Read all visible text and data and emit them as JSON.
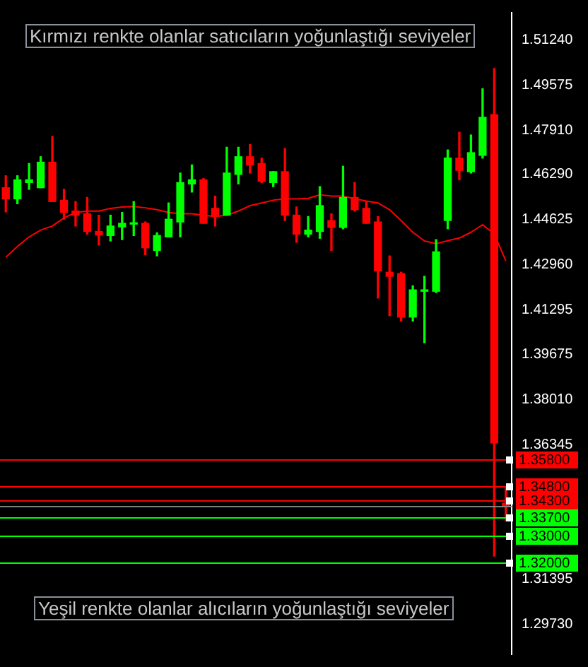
{
  "chart_data": {
    "type": "candlestick",
    "annotations": [
      "Kırmızı renkte olanlar satıcıların yoğunlaştığı seviyeler",
      "Yeşil renkte olanlar alıcıların yoğunlaştığı seviyeler"
    ],
    "categories": [
      null,
      null,
      null,
      null,
      null,
      null,
      null,
      null,
      null,
      null,
      null,
      null,
      null,
      null,
      null,
      null,
      null,
      null,
      null,
      null,
      null,
      null,
      null,
      null,
      null,
      null,
      null,
      null,
      null,
      null,
      null,
      null,
      null,
      null,
      null,
      null,
      null,
      null,
      null,
      null,
      null,
      null,
      null,
      null
    ],
    "ohlc": [
      [
        1.458,
        1.4624,
        1.4491,
        1.4539
      ],
      [
        1.4539,
        1.4624,
        1.4521,
        1.4609
      ],
      [
        1.4599,
        1.4669,
        1.4574,
        1.4609
      ],
      [
        1.458,
        1.4694,
        1.458,
        1.4674
      ],
      [
        1.4674,
        1.4769,
        1.4529,
        1.4529
      ],
      [
        1.4534,
        1.4574,
        1.4464,
        1.4489
      ],
      [
        1.4494,
        1.4529,
        1.4439,
        1.4479
      ],
      [
        1.4484,
        1.4544,
        1.4409,
        1.4419
      ],
      [
        1.4419,
        1.4479,
        1.4369,
        1.4406
      ],
      [
        1.4404,
        1.4479,
        1.4384,
        1.4439
      ],
      [
        1.4436,
        1.4489,
        1.4389,
        1.4449
      ],
      [
        1.4446,
        1.4529,
        1.4404,
        1.4449
      ],
      [
        1.4449,
        1.4454,
        1.4334,
        1.4359
      ],
      [
        1.4349,
        1.4414,
        1.4329,
        1.4404
      ],
      [
        1.4399,
        1.4524,
        1.4399,
        1.4464
      ],
      [
        1.4454,
        1.4634,
        1.4399,
        1.4599
      ],
      [
        1.4594,
        1.4664,
        1.4564,
        1.4609
      ],
      [
        1.4609,
        1.4614,
        1.4449,
        1.4449
      ],
      [
        1.4504,
        1.4549,
        1.4439,
        1.4479
      ],
      [
        1.4479,
        1.4729,
        1.4479,
        1.4634
      ],
      [
        1.4629,
        1.4729,
        1.4594,
        1.4694
      ],
      [
        1.4694,
        1.4739,
        1.4634,
        1.4664
      ],
      [
        1.4669,
        1.4689,
        1.4599,
        1.4604
      ],
      [
        1.4599,
        1.4639,
        1.4584,
        1.4639
      ],
      [
        1.4639,
        1.4724,
        1.4459,
        1.4479
      ],
      [
        1.4479,
        1.4509,
        1.4379,
        1.4409
      ],
      [
        1.4409,
        1.4474,
        1.4399,
        1.4424
      ],
      [
        1.4419,
        1.4584,
        1.4394,
        1.4514
      ],
      [
        1.4459,
        1.4484,
        1.4349,
        1.4434
      ],
      [
        1.4434,
        1.4659,
        1.4429,
        1.4544
      ],
      [
        1.4544,
        1.4599,
        1.4494,
        1.4499
      ],
      [
        1.4504,
        1.4529,
        1.4449,
        1.4449
      ],
      [
        1.4454,
        1.4474,
        1.4174,
        1.4274
      ],
      [
        1.4269,
        1.4329,
        1.4109,
        1.4254
      ],
      [
        1.4264,
        1.4269,
        1.4089,
        1.4104
      ],
      [
        1.4104,
        1.4219,
        1.4089,
        1.4204
      ],
      [
        1.4199,
        1.4254,
        1.4009,
        1.4204
      ],
      [
        1.4199,
        1.4389,
        1.4194,
        1.4344
      ],
      [
        1.4459,
        1.4719,
        1.4429,
        1.4689
      ],
      [
        1.4689,
        1.4784,
        1.4609,
        1.4644
      ],
      [
        1.4639,
        1.4774,
        1.4634,
        1.4709
      ],
      [
        1.4699,
        1.4944,
        1.4689,
        1.4839
      ],
      [
        1.4849,
        1.5019,
        1.3224,
        1.3641
      ],
      [
        1.3419,
        1.3479,
        1.3354,
        1.3408
      ]
    ],
    "colors": [
      "#ff0000",
      "#00ff00",
      "#00ff00",
      "#00ff00",
      "#ff0000",
      "#ff0000",
      "#ff0000",
      "#ff0000",
      "#ff0000",
      "#00ff00",
      "#00ff00",
      "#00ff00",
      "#ff0000",
      "#00ff00",
      "#00ff00",
      "#00ff00",
      "#00ff00",
      "#ff0000",
      "#ff0000",
      "#00ff00",
      "#00ff00",
      "#ff0000",
      "#ff0000",
      "#00ff00",
      "#ff0000",
      "#ff0000",
      "#00ff00",
      "#00ff00",
      "#ff0000",
      "#00ff00",
      "#ff0000",
      "#ff0000",
      "#ff0000",
      "#ff0000",
      "#ff0000",
      "#00ff00",
      "#00ff00",
      "#00ff00",
      "#00ff00",
      "#ff0000",
      "#00ff00",
      "#00ff00",
      "#ff0000",
      "#ff0000"
    ],
    "series": [
      {
        "type": "line",
        "color": "#ff0000",
        "values": [
          1.4324,
          1.4364,
          1.4399,
          1.4424,
          1.4439,
          1.4469,
          1.4489,
          1.4494,
          1.4494,
          1.4504,
          1.4509,
          1.4511,
          1.4506,
          1.4499,
          1.4489,
          1.4484,
          1.4484,
          1.4479,
          1.4474,
          1.4479,
          1.4494,
          1.4514,
          1.4524,
          1.4534,
          1.4539,
          1.4539,
          1.4541,
          1.4554,
          1.4549,
          1.4549,
          1.4539,
          1.4531,
          1.4524,
          1.4499,
          1.4459,
          1.4416,
          1.4384,
          1.4374,
          1.4385,
          1.4395,
          1.4416,
          1.4444,
          1.441,
          1.4311
        ]
      }
    ],
    "ylim": [
      1.2863,
      1.5224
    ],
    "yticks": [
      {
        "value": 1.5124,
        "label": "1.51240"
      },
      {
        "value": 1.49575,
        "label": "1.49575"
      },
      {
        "value": 1.4791,
        "label": "1.47910"
      },
      {
        "value": 1.4629,
        "label": "1.46290"
      },
      {
        "value": 1.44625,
        "label": "1.44625"
      },
      {
        "value": 1.4296,
        "label": "1.42960"
      },
      {
        "value": 1.41295,
        "label": "1.41295"
      },
      {
        "value": 1.39675,
        "label": "1.39675"
      },
      {
        "value": 1.3801,
        "label": "1.38010"
      },
      {
        "value": 1.36345,
        "label": "1.36345"
      },
      {
        "value": 1.31395,
        "label": "1.31395"
      },
      {
        "value": 1.2973,
        "label": "1.29730"
      }
    ],
    "ref_lines": [
      {
        "axis": "y",
        "value": 1.358,
        "label": "1.35800",
        "color": "#ff0000"
      },
      {
        "axis": "y",
        "value": 1.348,
        "label": "1.34800",
        "color": "#ff0000"
      },
      {
        "axis": "y",
        "value": 1.343,
        "label": "1.34300",
        "color": "#ff0000"
      },
      {
        "axis": "y",
        "value": 1.337,
        "label": "1.33700",
        "color": "#00ff00"
      },
      {
        "axis": "y",
        "value": 1.33,
        "label": "1.33000",
        "color": "#00ff00"
      },
      {
        "axis": "y",
        "value": 1.32,
        "label": "1.32000",
        "color": "#00ff00"
      },
      {
        "axis": "y",
        "value": 1.3409,
        "color": "#808080"
      }
    ],
    "grid": false,
    "legend": false,
    "tick_labels": "y"
  }
}
